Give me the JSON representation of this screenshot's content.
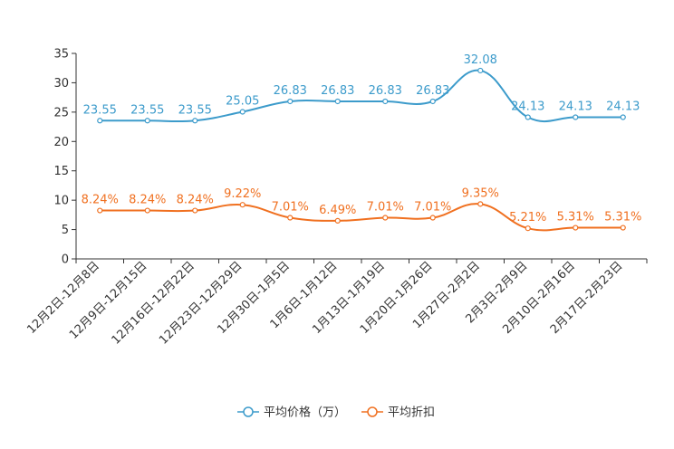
{
  "chart_data": {
    "type": "line",
    "categories": [
      "12月2日-12月8日",
      "12月9日-12月15日",
      "12月16日-12月22日",
      "12月23日-12月29日",
      "12月30日-1月5日",
      "1月6日-1月12日",
      "1月13日-1月19日",
      "1月20日-1月26日",
      "1月27日-2月2日",
      "2月3日-2月9日",
      "2月10日-2月16日",
      "2月17日-2月23日"
    ],
    "ylim": [
      0,
      35
    ],
    "yticks": [
      0,
      5,
      10,
      15,
      20,
      25,
      30,
      35
    ],
    "series": [
      {
        "name": "平均价格（万）",
        "color": "#3c9bcb",
        "values": [
          23.55,
          23.55,
          23.55,
          25.05,
          26.83,
          26.83,
          26.83,
          26.83,
          32.08,
          24.13,
          24.13,
          24.13
        ],
        "labels": [
          "23.55",
          "23.55",
          "23.55",
          "25.05",
          "26.83",
          "26.83",
          "26.83",
          "26.83",
          "32.08",
          "24.13",
          "24.13",
          "24.13"
        ]
      },
      {
        "name": "平均折扣",
        "color": "#f07020",
        "values": [
          8.24,
          8.24,
          8.24,
          9.22,
          7.01,
          6.49,
          7.01,
          7.01,
          9.35,
          5.21,
          5.31,
          5.31
        ],
        "labels": [
          "8.24%",
          "8.24%",
          "8.24%",
          "9.22%",
          "7.01%",
          "6.49%",
          "7.01%",
          "7.01%",
          "9.35%",
          "5.21%",
          "5.31%",
          "5.31%"
        ]
      }
    ]
  }
}
